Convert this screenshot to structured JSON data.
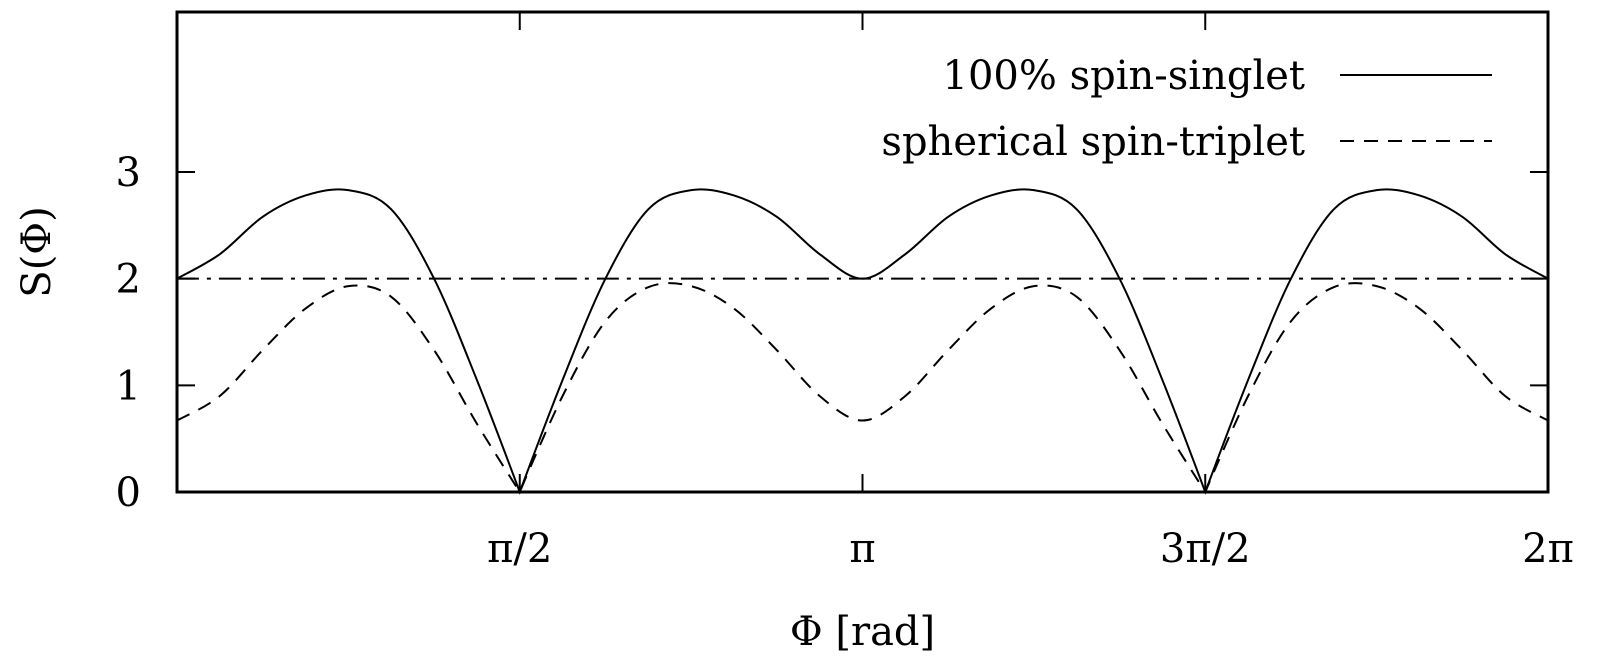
{
  "chart_data": {
    "type": "line",
    "xlabel": "Φ [rad]",
    "ylabel": "S(Φ)",
    "xlim": [
      0,
      6.2832
    ],
    "ylim": [
      0,
      4.5
    ],
    "grid": false,
    "legend_position": "top-right",
    "x_ticks": [
      {
        "value": 1.5708,
        "label": "π/2"
      },
      {
        "value": 3.1416,
        "label": "π"
      },
      {
        "value": 4.7124,
        "label": "3π/2"
      },
      {
        "value": 6.2832,
        "label": "2π"
      }
    ],
    "y_ticks": [
      {
        "value": 0,
        "label": "0"
      },
      {
        "value": 1,
        "label": "1"
      },
      {
        "value": 2,
        "label": "2"
      },
      {
        "value": 3,
        "label": "3"
      }
    ],
    "series": [
      {
        "name": "100% spin-singlet",
        "style": "solid",
        "x": [
          0,
          0.1963,
          0.3927,
          0.589,
          0.7854,
          0.9817,
          1.1781,
          1.3744,
          1.5708,
          1.7671,
          1.9635,
          2.1598,
          2.3562,
          2.5525,
          2.7489,
          2.9452,
          3.1416,
          3.3379,
          3.5343,
          3.7306,
          3.927,
          4.1233,
          4.3197,
          4.516,
          4.7124,
          4.9087,
          5.1051,
          5.3014,
          5.4978,
          5.6941,
          5.8905,
          6.0868,
          6.2832
        ],
        "y": [
          2.0,
          2.23,
          2.58,
          2.78,
          2.83,
          2.65,
          2.0,
          1.05,
          0.0,
          1.05,
          2.0,
          2.65,
          2.83,
          2.78,
          2.58,
          2.23,
          2.0,
          2.23,
          2.58,
          2.78,
          2.83,
          2.65,
          2.0,
          1.05,
          0.0,
          1.05,
          2.0,
          2.65,
          2.83,
          2.78,
          2.58,
          2.23,
          2.0
        ]
      },
      {
        "name": "spherical spin-triplet",
        "style": "dashed",
        "x": [
          0,
          0.1963,
          0.3927,
          0.589,
          0.7854,
          0.9817,
          1.1781,
          1.3744,
          1.5708,
          1.7671,
          1.9635,
          2.1598,
          2.3562,
          2.5525,
          2.7489,
          2.9452,
          3.1416,
          3.3379,
          3.5343,
          3.7306,
          3.927,
          4.1233,
          4.3197,
          4.516,
          4.7124,
          4.9087,
          5.1051,
          5.3014,
          5.4978,
          5.6941,
          5.8905,
          6.0868,
          6.2832
        ],
        "y": [
          0.67,
          0.9,
          1.33,
          1.72,
          1.93,
          1.83,
          1.33,
          0.64,
          0.0,
          0.9,
          1.6,
          1.92,
          1.93,
          1.72,
          1.33,
          0.9,
          0.67,
          0.9,
          1.33,
          1.72,
          1.93,
          1.83,
          1.33,
          0.64,
          0.0,
          0.9,
          1.6,
          1.92,
          1.93,
          1.72,
          1.33,
          0.9,
          0.67
        ]
      },
      {
        "name": "",
        "style": "dashdot",
        "x": [
          0,
          6.2832
        ],
        "y": [
          2,
          2
        ]
      }
    ]
  }
}
